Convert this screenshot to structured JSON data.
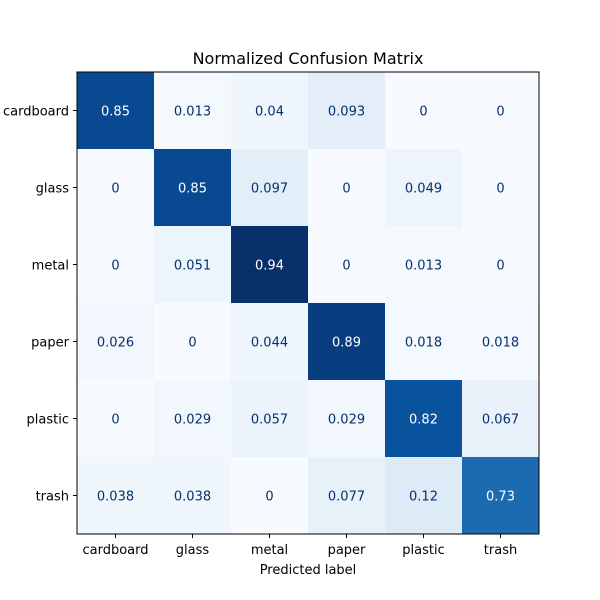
{
  "chart_data": {
    "type": "heatmap",
    "title": "Normalized Confusion Matrix",
    "xlabel": "Predicted label",
    "ylabel": "",
    "x_categories": [
      "cardboard",
      "glass",
      "metal",
      "paper",
      "plastic",
      "trash"
    ],
    "y_categories": [
      "cardboard",
      "glass",
      "metal",
      "paper",
      "plastic",
      "trash"
    ],
    "values": [
      [
        0.85,
        0.013,
        0.04,
        0.093,
        0,
        0
      ],
      [
        0,
        0.85,
        0.097,
        0,
        0.049,
        0
      ],
      [
        0,
        0.051,
        0.94,
        0,
        0.013,
        0
      ],
      [
        0.026,
        0,
        0.044,
        0.89,
        0.018,
        0.018
      ],
      [
        0,
        0.029,
        0.057,
        0.029,
        0.82,
        0.067
      ],
      [
        0.038,
        0.038,
        0,
        0.077,
        0.12,
        0.73
      ]
    ],
    "value_labels": [
      [
        "0.85",
        "0.013",
        "0.04",
        "0.093",
        "0",
        "0"
      ],
      [
        "0",
        "0.85",
        "0.097",
        "0",
        "0.049",
        "0"
      ],
      [
        "0",
        "0.051",
        "0.94",
        "0",
        "0.013",
        "0"
      ],
      [
        "0.026",
        "0",
        "0.044",
        "0.89",
        "0.018",
        "0.018"
      ],
      [
        "0",
        "0.029",
        "0.057",
        "0.029",
        "0.82",
        "0.067"
      ],
      [
        "0.038",
        "0.038",
        "0",
        "0.077",
        "0.12",
        "0.73"
      ]
    ],
    "colormap": "Blues",
    "color_range": [
      0,
      0.94
    ],
    "grid": false,
    "colorbar": false
  }
}
